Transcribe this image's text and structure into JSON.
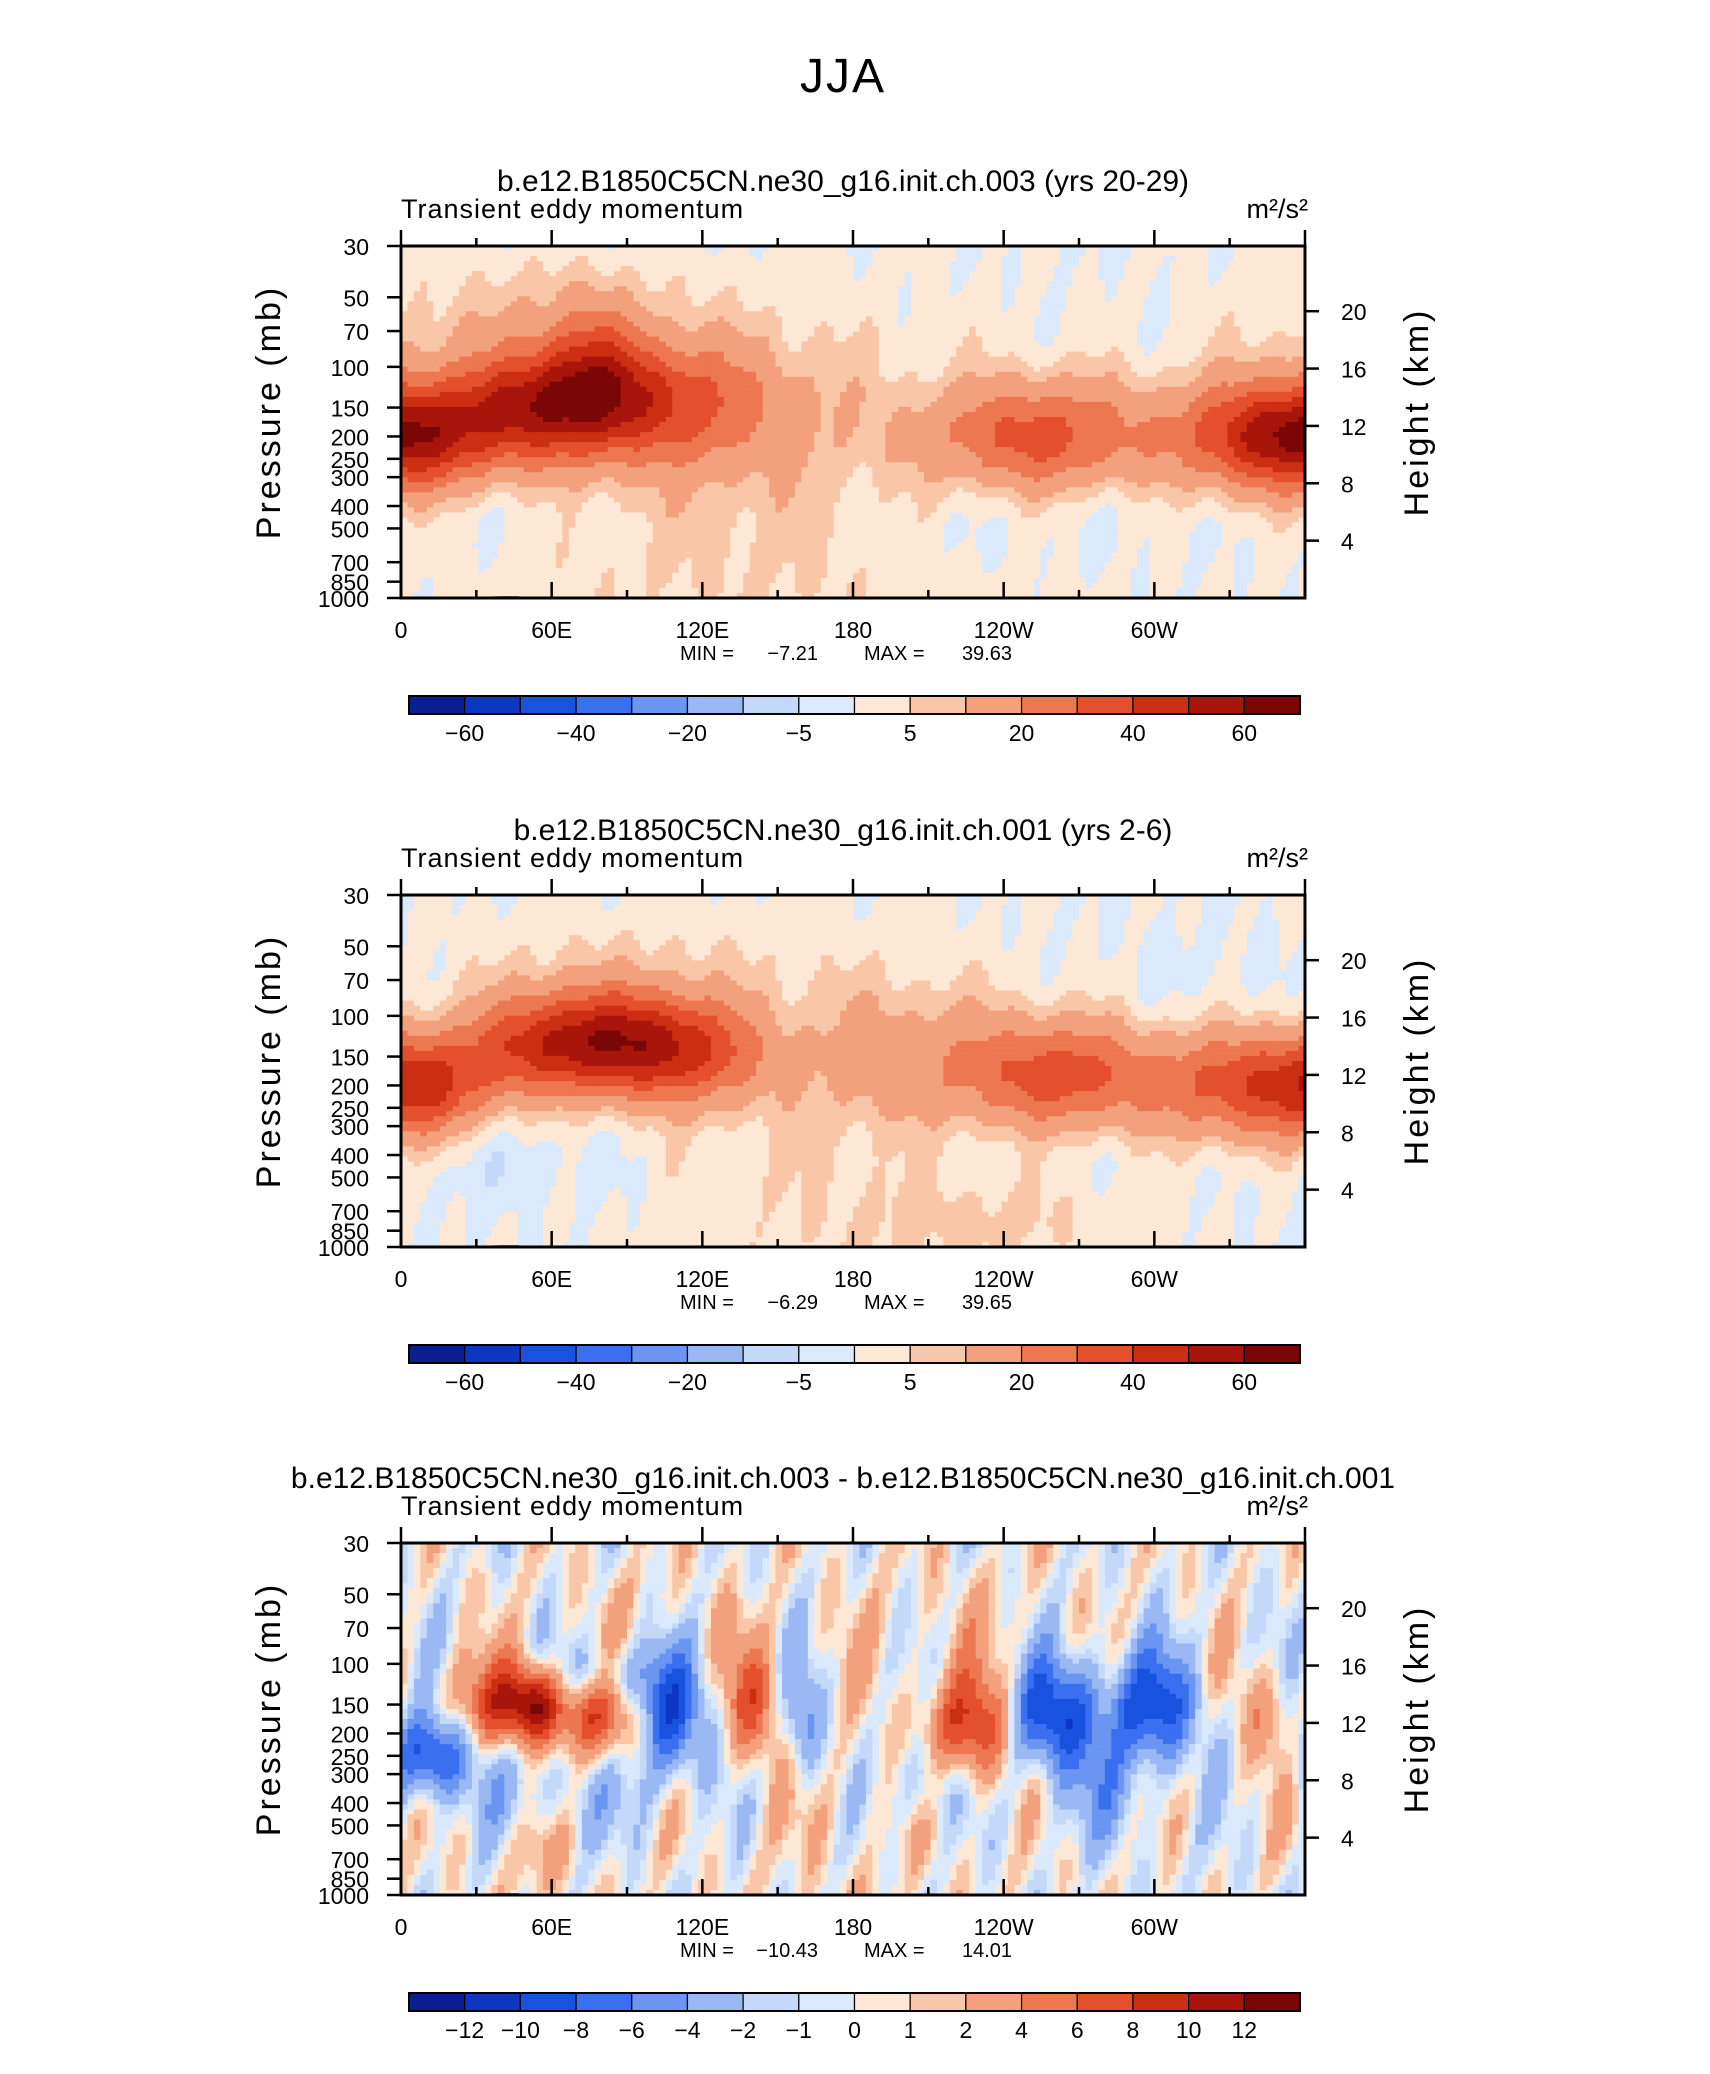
{
  "figure": {
    "title": "JJA"
  },
  "x_ticks": [
    "0",
    "60E",
    "120E",
    "180",
    "120W",
    "60W"
  ],
  "pressure_ticks": [
    30,
    50,
    70,
    100,
    150,
    200,
    250,
    300,
    400,
    500,
    700,
    850,
    1000
  ],
  "height_ticks": [
    20,
    16,
    12,
    8,
    4
  ],
  "ylabel_left": "Pressure (mb)",
  "ylabel_right": "Height (km)",
  "colors": {
    "full_palette": [
      "#0b1e8f",
      "#0c37c2",
      "#1a52e0",
      "#3a6ff0",
      "#6a95f0",
      "#9ab8f4",
      "#c4d9fa",
      "#dbe9fc",
      "#fde8d6",
      "#f9c7a8",
      "#f3a07c",
      "#ec7751",
      "#e4502e",
      "#cc2e14",
      "#a8150a",
      "#7a0606"
    ],
    "diff_palette": [
      "#0b1e8f",
      "#0c37c2",
      "#1a52e0",
      "#3a6ff0",
      "#6a95f0",
      "#9ab8f4",
      "#c4d9fa",
      "#dbe9fc",
      "#fde8d6",
      "#f9c7a8",
      "#f3a07c",
      "#ec7751",
      "#e4502e",
      "#cc2e14",
      "#a8150a",
      "#7a0606"
    ]
  },
  "panels": [
    {
      "title": "b.e12.B1850C5CN.ne30_g16.init.ch.003 (yrs 20-29)",
      "left_label": "Transient eddy momentum",
      "units": "m²/s²",
      "min_label": "MIN =",
      "min_value": "−7.21",
      "max_label": "MAX =",
      "max_value": "39.63",
      "colorbar_labels": [
        "−60",
        "−40",
        "−20",
        "−5",
        "5",
        "20",
        "40",
        "60"
      ]
    },
    {
      "title": "b.e12.B1850C5CN.ne30_g16.init.ch.001 (yrs 2-6)",
      "left_label": "Transient eddy momentum",
      "units": "m²/s²",
      "min_label": "MIN =",
      "min_value": "−6.29",
      "max_label": "MAX =",
      "max_value": "39.65",
      "colorbar_labels": [
        "−60",
        "−40",
        "−20",
        "−5",
        "5",
        "20",
        "40",
        "60"
      ]
    },
    {
      "title": "b.e12.B1850C5CN.ne30_g16.init.ch.003 - b.e12.B1850C5CN.ne30_g16.init.ch.001",
      "left_label": "Transient eddy momentum",
      "units": "m²/s²",
      "min_label": "MIN =",
      "min_value": "−10.43",
      "max_label": "MAX =",
      "max_value": "14.01",
      "colorbar_labels": [
        "−12",
        "−10",
        "−8",
        "−6",
        "−4",
        "−2",
        "−1",
        "0",
        "1",
        "2",
        "4",
        "6",
        "8",
        "10",
        "12"
      ]
    }
  ],
  "chart_data": [
    {
      "type": "heatmap",
      "title": "b.e12.B1850C5CN.ne30_g16.init.ch.003 (yrs 20-29)",
      "xlabel": "",
      "ylabel": "Pressure (mb)",
      "x_range": [
        "0",
        "360"
      ],
      "ylim": [
        1000,
        30
      ],
      "y_scale": "log",
      "contour_levels": [
        -70,
        -60,
        -50,
        -40,
        -30,
        -20,
        -10,
        -5,
        0,
        5,
        10,
        20,
        30,
        40,
        50,
        60,
        70
      ],
      "min": -7.21,
      "max": 39.63,
      "maxima": [
        {
          "lon": 5,
          "pressure": 200,
          "value": 30
        },
        {
          "lon": 50,
          "pressure": 150,
          "value": 30
        },
        {
          "lon": 90,
          "pressure": 140,
          "value": 30
        },
        {
          "lon": 255,
          "pressure": 200,
          "value": 30
        },
        {
          "lon": 340,
          "pressure": 200,
          "value": 30
        }
      ]
    },
    {
      "type": "heatmap",
      "title": "b.e12.B1850C5CN.ne30_g16.init.ch.001 (yrs 2-6)",
      "xlabel": "",
      "ylabel": "Pressure (mb)",
      "x_range": [
        "0",
        "360"
      ],
      "ylim": [
        1000,
        30
      ],
      "y_scale": "log",
      "contour_levels": [
        -70,
        -60,
        -50,
        -40,
        -30,
        -20,
        -10,
        -5,
        0,
        5,
        10,
        20,
        30,
        40,
        50,
        60,
        70
      ],
      "min": -6.29,
      "max": 39.65,
      "maxima": [
        {
          "lon": 10,
          "pressure": 200,
          "value": 30
        },
        {
          "lon": 75,
          "pressure": 120,
          "value": 30
        },
        {
          "lon": 110,
          "pressure": 150,
          "value": 30
        },
        {
          "lon": 262,
          "pressure": 180,
          "value": 30
        },
        {
          "lon": 335,
          "pressure": 200,
          "value": 30
        }
      ]
    },
    {
      "type": "heatmap",
      "title": "b.e12.B1850C5CN.ne30_g16.init.ch.003 - b.e12.B1850C5CN.ne30_g16.init.ch.001",
      "xlabel": "",
      "ylabel": "Pressure (mb)",
      "x_range": [
        "0",
        "360"
      ],
      "ylim": [
        1000,
        30
      ],
      "y_scale": "log",
      "contour_levels": [
        -14,
        -12,
        -10,
        -8,
        -6,
        -4,
        -2,
        -1,
        0,
        1,
        2,
        4,
        6,
        8,
        10,
        12,
        14
      ],
      "min": -10.43,
      "max": 14.01
    }
  ]
}
